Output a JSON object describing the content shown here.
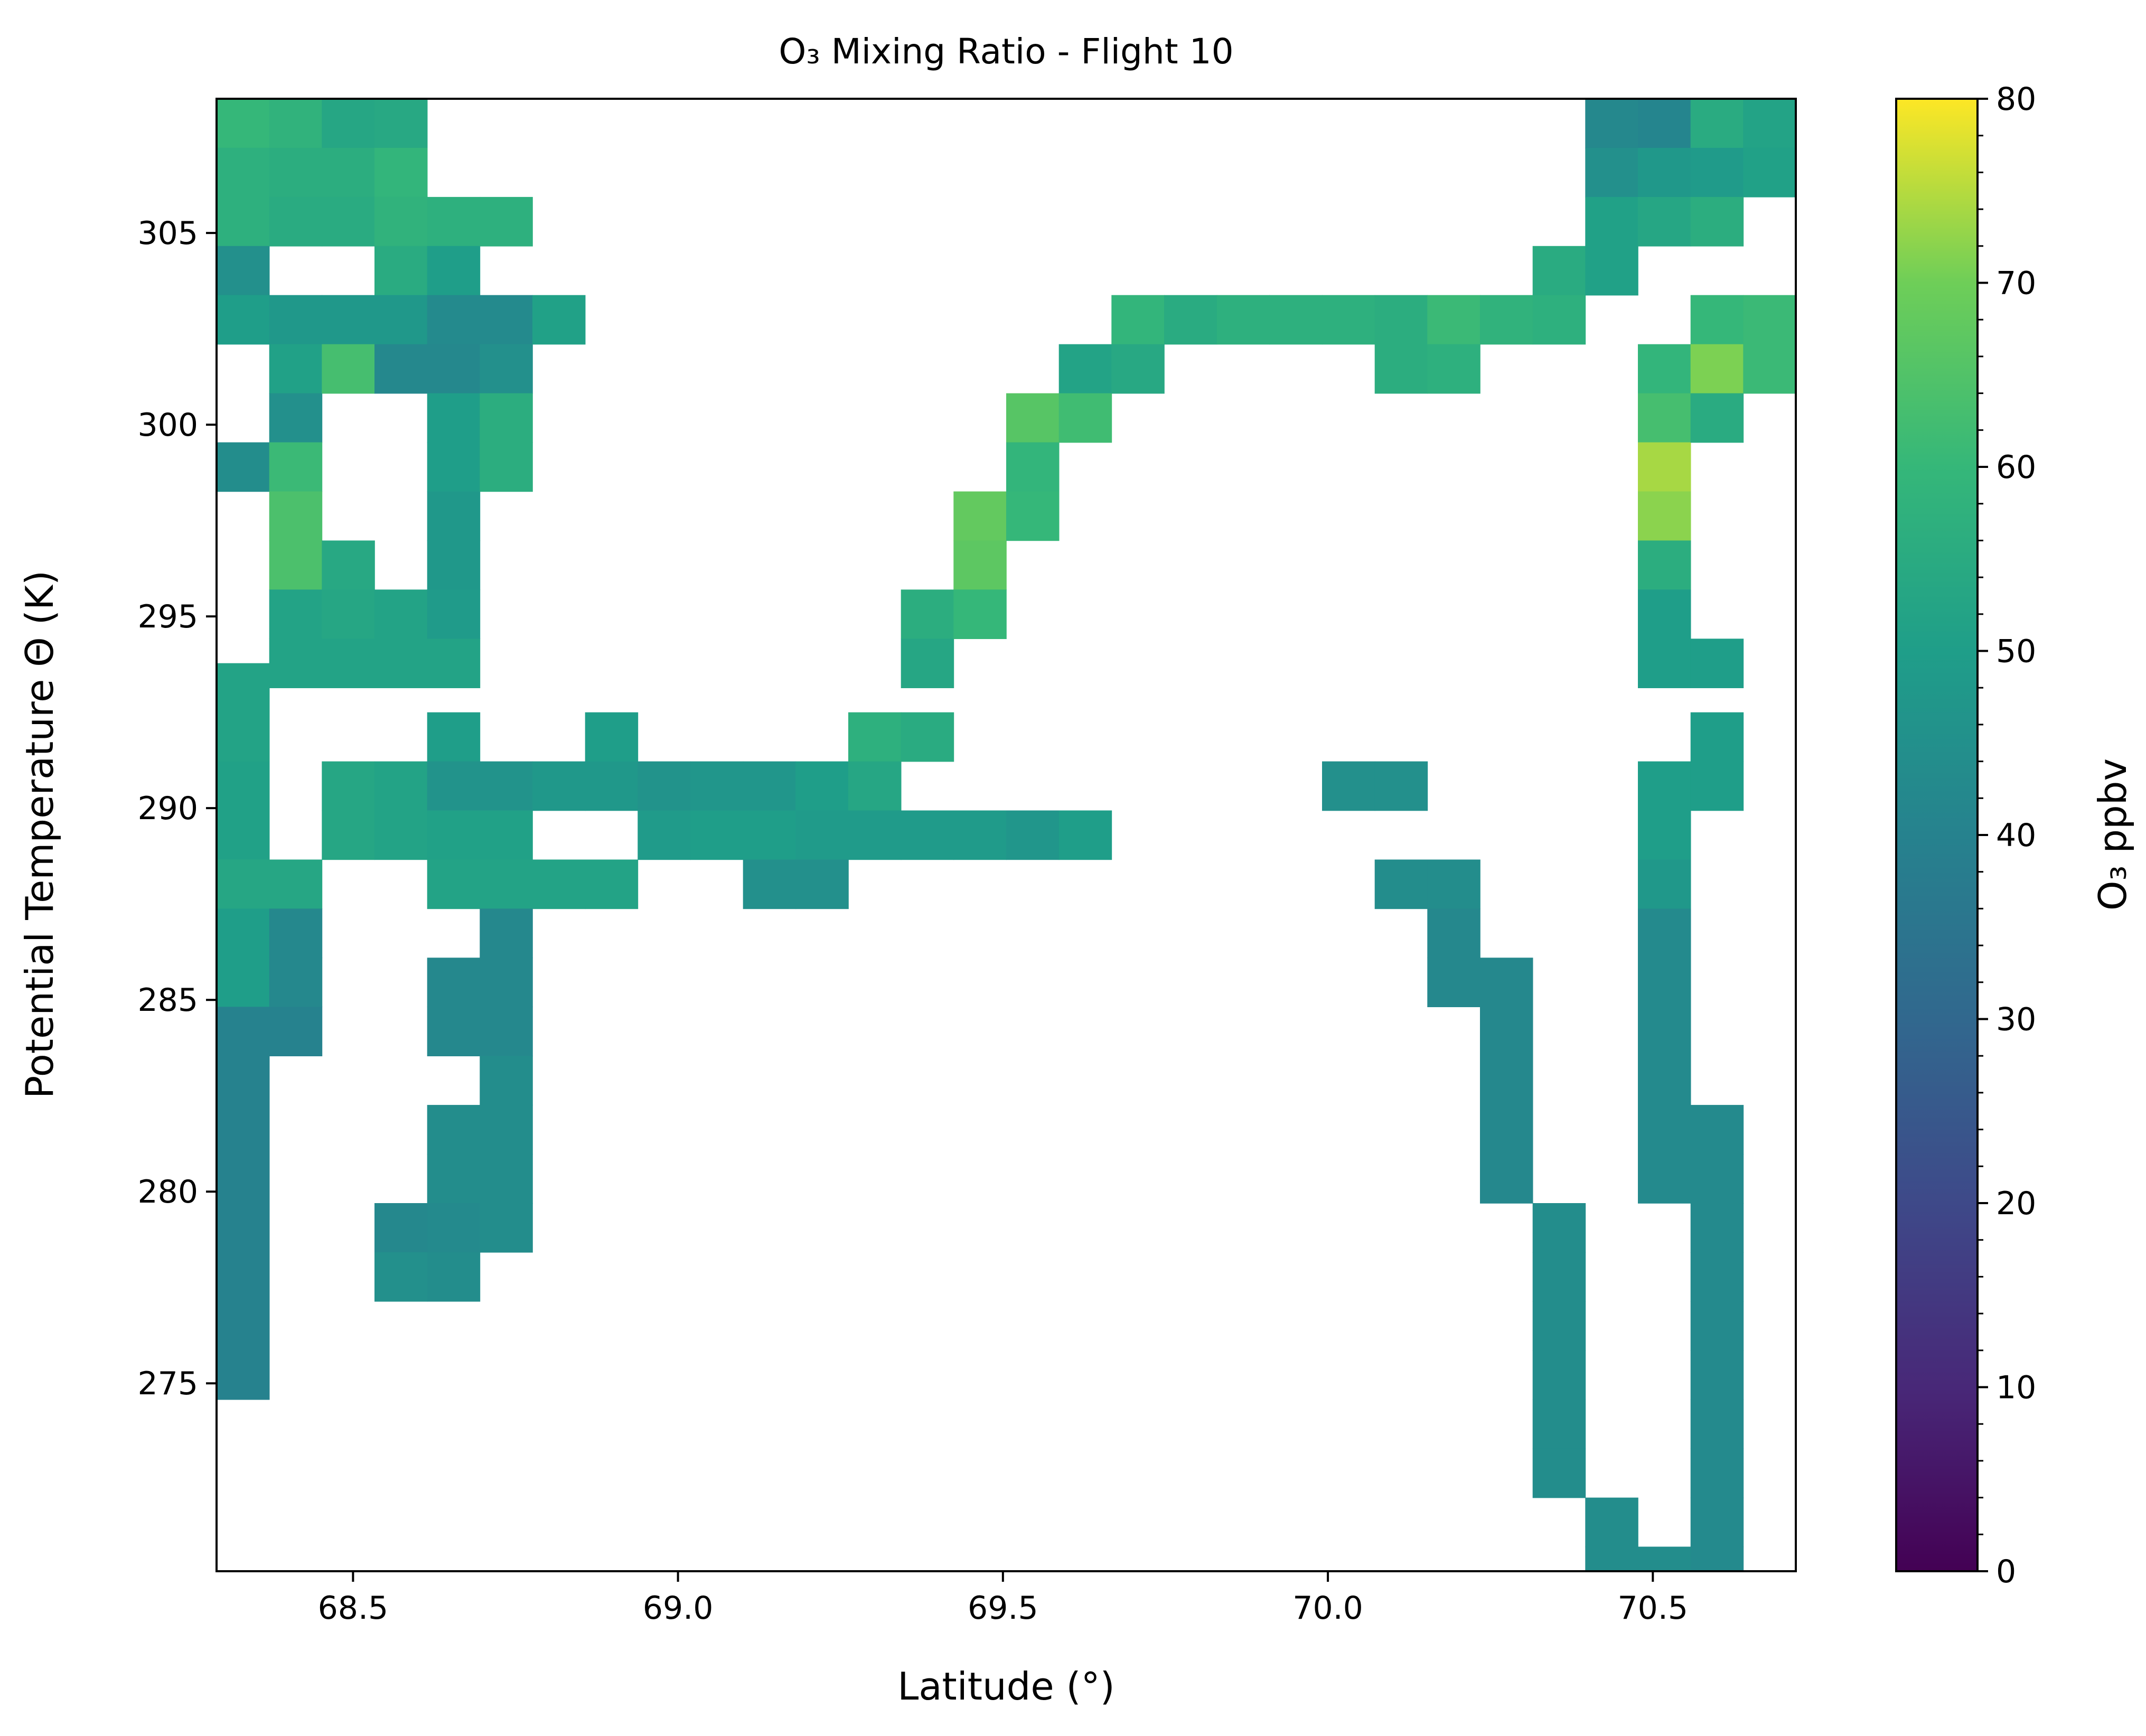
{
  "chart_data": {
    "type": "heatmap",
    "title": "O₃ Mixing Ratio - Flight 10",
    "xlabel": "Latitude (°)",
    "ylabel": "Potential Temperature Θ (K)",
    "xlim": [
      68.29,
      70.72
    ],
    "ylim": [
      270.1,
      308.5
    ],
    "x_ticks": [
      68.5,
      69.0,
      69.5,
      70.0,
      70.5
    ],
    "x_tick_labels": [
      "68.5",
      "69.0",
      "69.5",
      "70.0",
      "70.5"
    ],
    "y_ticks": [
      275,
      280,
      285,
      290,
      295,
      300,
      305
    ],
    "y_tick_labels": [
      "275",
      "280",
      "285",
      "290",
      "295",
      "300",
      "305"
    ],
    "bin_width_x": 0.081,
    "bin_height_y": 1.28,
    "colormap": "viridis",
    "colorbar": {
      "label": "O₃ ppbv",
      "vmin": 0,
      "vmax": 80,
      "ticks": [
        0,
        10,
        20,
        30,
        40,
        50,
        60,
        70,
        80
      ],
      "tick_labels": [
        "0",
        "10",
        "20",
        "30",
        "40",
        "50",
        "60",
        "70",
        "80"
      ]
    },
    "cells": [
      [
        68.29,
        307.22,
        60
      ],
      [
        68.29,
        305.94,
        57
      ],
      [
        68.29,
        304.66,
        57
      ],
      [
        68.29,
        303.38,
        45
      ],
      [
        68.29,
        302.1,
        50
      ],
      [
        68.29,
        300.82,
        null
      ],
      [
        68.29,
        298.26,
        44
      ],
      [
        68.29,
        292.5,
        52
      ],
      [
        68.29,
        291.22,
        52
      ],
      [
        68.29,
        289.94,
        51
      ],
      [
        68.29,
        288.66,
        51
      ],
      [
        68.29,
        287.38,
        53
      ],
      [
        68.29,
        286.1,
        50
      ],
      [
        68.29,
        284.82,
        50
      ],
      [
        68.29,
        283.54,
        40
      ],
      [
        68.29,
        282.26,
        40
      ],
      [
        68.29,
        280.98,
        40
      ],
      [
        68.29,
        279.7,
        40
      ],
      [
        68.29,
        278.42,
        40
      ],
      [
        68.29,
        277.14,
        40
      ],
      [
        68.29,
        275.86,
        40
      ],
      [
        68.29,
        274.58,
        40
      ],
      [
        68.371,
        308.5,
        63
      ],
      [
        68.371,
        307.22,
        58
      ],
      [
        68.371,
        305.94,
        56
      ],
      [
        68.371,
        304.66,
        55
      ],
      [
        68.371,
        302.1,
        48
      ],
      [
        68.371,
        300.82,
        51
      ],
      [
        68.371,
        299.54,
        45
      ],
      [
        68.371,
        298.26,
        61
      ],
      [
        68.371,
        296.98,
        64
      ],
      [
        68.371,
        295.7,
        64
      ],
      [
        68.371,
        294.42,
        52
      ],
      [
        68.371,
        293.14,
        52
      ],
      [
        68.371,
        287.38,
        53
      ],
      [
        68.371,
        286.1,
        42
      ],
      [
        68.371,
        284.82,
        42
      ],
      [
        68.371,
        283.54,
        40
      ],
      [
        68.452,
        307.22,
        53
      ],
      [
        68.452,
        305.94,
        56
      ],
      [
        68.452,
        304.66,
        55
      ],
      [
        68.452,
        302.1,
        48
      ],
      [
        68.452,
        300.82,
        63
      ],
      [
        68.452,
        295.7,
        54
      ],
      [
        68.452,
        294.42,
        53
      ],
      [
        68.452,
        293.14,
        52
      ],
      [
        68.452,
        289.94,
        53
      ],
      [
        68.452,
        288.66,
        53
      ],
      [
        68.533,
        308.5,
        57
      ],
      [
        68.533,
        307.22,
        54
      ],
      [
        68.533,
        305.94,
        59
      ],
      [
        68.533,
        304.66,
        58
      ],
      [
        68.533,
        303.38,
        55
      ],
      [
        68.533,
        302.1,
        48
      ],
      [
        68.533,
        300.82,
        42
      ],
      [
        68.533,
        294.42,
        52
      ],
      [
        68.533,
        293.14,
        52
      ],
      [
        68.533,
        289.94,
        52
      ],
      [
        68.533,
        288.66,
        52
      ],
      [
        68.533,
        278.42,
        42
      ],
      [
        68.533,
        277.14,
        45
      ],
      [
        68.614,
        308.5,
        62
      ],
      [
        68.614,
        304.66,
        57
      ],
      [
        68.614,
        303.38,
        50
      ],
      [
        68.614,
        302.1,
        43
      ],
      [
        68.614,
        300.82,
        42
      ],
      [
        68.614,
        299.54,
        50
      ],
      [
        68.614,
        298.26,
        50
      ],
      [
        68.614,
        296.98,
        48
      ],
      [
        68.614,
        295.7,
        48
      ],
      [
        68.614,
        294.42,
        49
      ],
      [
        68.614,
        293.14,
        52
      ],
      [
        68.614,
        291.22,
        50
      ],
      [
        68.614,
        289.94,
        46
      ],
      [
        68.614,
        288.66,
        51
      ],
      [
        68.614,
        287.38,
        52
      ],
      [
        68.614,
        284.82,
        42
      ],
      [
        68.614,
        283.54,
        42
      ],
      [
        68.614,
        280.98,
        44
      ],
      [
        68.614,
        279.7,
        44
      ],
      [
        68.614,
        278.42,
        43
      ],
      [
        68.614,
        277.14,
        44
      ],
      [
        68.695,
        304.66,
        57
      ],
      [
        68.695,
        302.1,
        43
      ],
      [
        68.695,
        300.82,
        45
      ],
      [
        68.695,
        299.54,
        56
      ],
      [
        68.695,
        298.26,
        56
      ],
      [
        68.695,
        289.94,
        46
      ],
      [
        68.695,
        288.66,
        51
      ],
      [
        68.695,
        287.38,
        52
      ],
      [
        68.695,
        286.1,
        42
      ],
      [
        68.695,
        284.82,
        42
      ],
      [
        68.695,
        283.54,
        42
      ],
      [
        68.695,
        282.26,
        44
      ],
      [
        68.695,
        280.98,
        44
      ],
      [
        68.695,
        279.7,
        44
      ],
      [
        68.695,
        278.42,
        44
      ],
      [
        68.776,
        302.1,
        51
      ],
      [
        68.776,
        289.94,
        48
      ],
      [
        68.776,
        287.38,
        52
      ],
      [
        68.857,
        291.22,
        50
      ],
      [
        68.857,
        289.94,
        48
      ],
      [
        68.857,
        287.38,
        52
      ],
      [
        68.938,
        289.94,
        46
      ],
      [
        68.938,
        288.66,
        49
      ],
      [
        69.019,
        289.94,
        47
      ],
      [
        69.019,
        288.66,
        50
      ],
      [
        69.1,
        289.94,
        47
      ],
      [
        69.1,
        288.66,
        50
      ],
      [
        69.1,
        287.38,
        45
      ],
      [
        69.181,
        289.94,
        50
      ],
      [
        69.181,
        288.66,
        49
      ],
      [
        69.181,
        287.38,
        45
      ],
      [
        69.262,
        291.22,
        57
      ],
      [
        69.262,
        289.94,
        53
      ],
      [
        69.262,
        288.66,
        49
      ],
      [
        69.343,
        294.42,
        56
      ],
      [
        69.343,
        293.14,
        53
      ],
      [
        69.343,
        291.22,
        55
      ],
      [
        69.343,
        288.66,
        49
      ],
      [
        69.424,
        296.98,
        68
      ],
      [
        69.424,
        295.7,
        67
      ],
      [
        69.424,
        294.42,
        60
      ],
      [
        69.424,
        288.66,
        49
      ],
      [
        69.505,
        299.54,
        66
      ],
      [
        69.505,
        298.26,
        59
      ],
      [
        69.505,
        296.98,
        60
      ],
      [
        69.505,
        288.66,
        47
      ],
      [
        69.586,
        300.82,
        52
      ],
      [
        69.586,
        299.54,
        62
      ],
      [
        69.586,
        288.66,
        50
      ],
      [
        69.667,
        302.1,
        59
      ],
      [
        69.667,
        300.82,
        54
      ],
      [
        69.748,
        302.1,
        55
      ],
      [
        69.829,
        302.1,
        57
      ],
      [
        69.91,
        302.1,
        57
      ],
      [
        69.991,
        302.1,
        57
      ],
      [
        69.991,
        289.94,
        45
      ],
      [
        70.072,
        302.1,
        56
      ],
      [
        70.072,
        300.82,
        56
      ],
      [
        70.072,
        289.94,
        45
      ],
      [
        70.072,
        287.38,
        44
      ],
      [
        70.153,
        302.1,
        61
      ],
      [
        70.153,
        300.82,
        57
      ],
      [
        70.153,
        287.38,
        44
      ],
      [
        70.153,
        286.1,
        42
      ],
      [
        70.153,
        284.82,
        42
      ],
      [
        70.234,
        302.1,
        58
      ],
      [
        70.234,
        284.82,
        42
      ],
      [
        70.234,
        283.54,
        42
      ],
      [
        70.234,
        282.26,
        42
      ],
      [
        70.234,
        280.98,
        42
      ],
      [
        70.234,
        279.7,
        42
      ],
      [
        70.315,
        303.38,
        55
      ],
      [
        70.315,
        302.1,
        57
      ],
      [
        70.315,
        278.42,
        44
      ],
      [
        70.315,
        277.14,
        44
      ],
      [
        70.315,
        275.86,
        44
      ],
      [
        70.315,
        274.58,
        44
      ],
      [
        70.315,
        273.3,
        44
      ],
      [
        70.315,
        272.02,
        44
      ],
      [
        70.396,
        307.22,
        42
      ],
      [
        70.396,
        305.94,
        45
      ],
      [
        70.396,
        304.66,
        51
      ],
      [
        70.396,
        303.38,
        51
      ],
      [
        70.396,
        270.74,
        44
      ],
      [
        70.396,
        269.46,
        44
      ],
      [
        70.477,
        307.22,
        41
      ],
      [
        70.477,
        305.94,
        48
      ],
      [
        70.477,
        304.66,
        53
      ],
      [
        70.477,
        300.82,
        59
      ],
      [
        70.477,
        299.54,
        63
      ],
      [
        70.477,
        298.26,
        74
      ],
      [
        70.477,
        296.98,
        72
      ],
      [
        70.477,
        295.7,
        56
      ],
      [
        70.477,
        294.42,
        50
      ],
      [
        70.477,
        293.14,
        50
      ],
      [
        70.477,
        289.94,
        50
      ],
      [
        70.477,
        288.66,
        50
      ],
      [
        70.477,
        287.38,
        48
      ],
      [
        70.477,
        286.1,
        43
      ],
      [
        70.477,
        284.82,
        43
      ],
      [
        70.477,
        283.54,
        43
      ],
      [
        70.477,
        282.26,
        43
      ],
      [
        70.477,
        280.98,
        43
      ],
      [
        70.477,
        279.7,
        43
      ],
      [
        70.477,
        269.46,
        44
      ],
      [
        70.558,
        307.22,
        55
      ],
      [
        70.558,
        305.94,
        49
      ],
      [
        70.558,
        304.66,
        56
      ],
      [
        70.558,
        302.1,
        60
      ],
      [
        70.558,
        300.82,
        71
      ],
      [
        70.558,
        299.54,
        55
      ],
      [
        70.558,
        293.14,
        50
      ],
      [
        70.558,
        291.22,
        50
      ],
      [
        70.558,
        289.94,
        50
      ],
      [
        70.558,
        280.98,
        43
      ],
      [
        70.558,
        279.7,
        43
      ],
      [
        70.558,
        278.42,
        43
      ],
      [
        70.558,
        277.14,
        43
      ],
      [
        70.558,
        275.86,
        43
      ],
      [
        70.558,
        274.58,
        43
      ],
      [
        70.558,
        273.3,
        43
      ],
      [
        70.558,
        272.02,
        43
      ],
      [
        70.558,
        270.74,
        43
      ],
      [
        70.558,
        269.46,
        43
      ],
      [
        70.639,
        307.22,
        52
      ],
      [
        70.639,
        305.94,
        51
      ],
      [
        70.639,
        302.1,
        61
      ],
      [
        70.639,
        300.82,
        61
      ]
    ]
  }
}
